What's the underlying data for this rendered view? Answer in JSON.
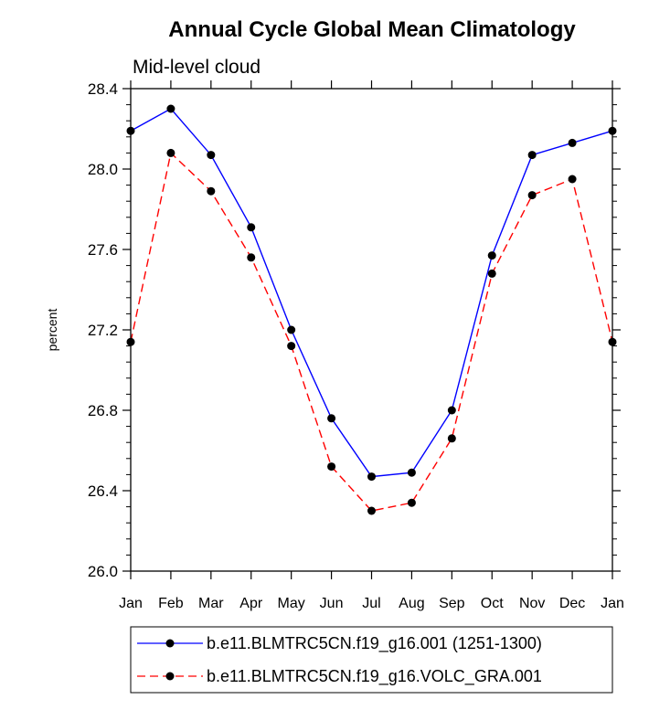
{
  "chart_data": {
    "type": "line",
    "title": "Annual Cycle Global Mean Climatology",
    "subtitle": "Mid-level cloud",
    "xlabel": "",
    "ylabel": "percent",
    "ylim": [
      26.0,
      28.4
    ],
    "yticks": [
      26.0,
      26.4,
      26.8,
      27.2,
      27.6,
      28.0,
      28.4
    ],
    "ytick_labels": [
      "26.0",
      "26.4",
      "26.8",
      "27.2",
      "27.6",
      "28.0",
      "28.4"
    ],
    "categories": [
      "Jan",
      "Feb",
      "Mar",
      "Apr",
      "May",
      "Jun",
      "Jul",
      "Aug",
      "Sep",
      "Oct",
      "Nov",
      "Dec",
      "Jan"
    ],
    "series": [
      {
        "name": "b.e11.BLMTRC5CN.f19_g16.001 (1251-1300)",
        "color": "#0000ff",
        "dash": "solid",
        "values": [
          28.19,
          28.3,
          28.07,
          27.71,
          27.2,
          26.76,
          26.47,
          26.49,
          26.8,
          27.57,
          28.07,
          28.13,
          28.19
        ]
      },
      {
        "name": "b.e11.BLMTRC5CN.f19_g16.VOLC_GRA.001",
        "color": "#ff0000",
        "dash": "dashed",
        "values": [
          27.14,
          28.08,
          27.89,
          27.56,
          27.12,
          26.52,
          26.3,
          26.34,
          26.66,
          27.48,
          27.87,
          27.95,
          27.14
        ]
      }
    ],
    "legend_position": "bottom"
  }
}
